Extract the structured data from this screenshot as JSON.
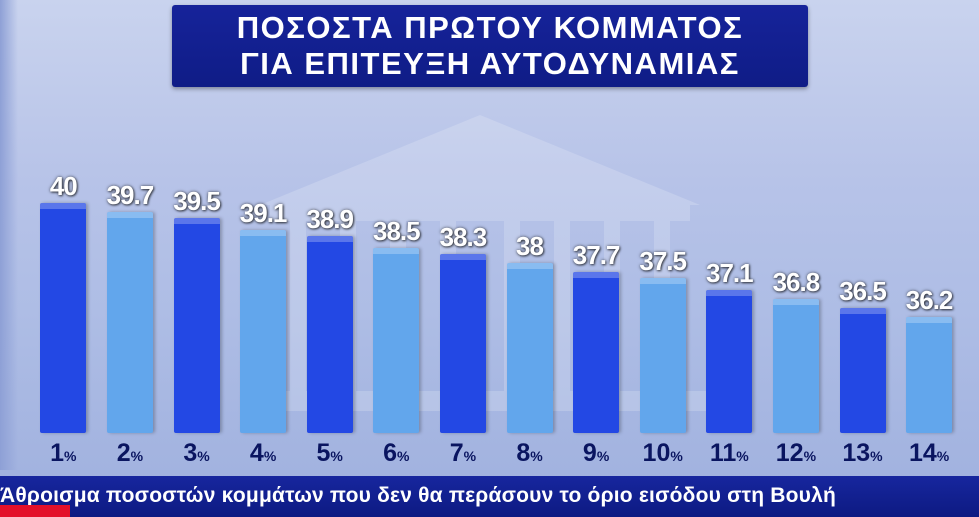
{
  "title": {
    "line1": "ΠΟΣΟΣΤΑ ΠΡΩΤΟΥ ΚΟΜΜΑΤΟΣ",
    "line2": "ΓΙΑ ΕΠΙΤΕΥΞΗ ΑΥΤΟΔΥΝΑΜΙΑΣ"
  },
  "ticker": {
    "text": "Άθροισμα ποσοστών κομμάτων που δεν θα περάσουν το όριο εισόδου στη Βουλή"
  },
  "colors": {
    "dark_bar": "#2348e4",
    "light_bar": "#62a6ec",
    "title_bg": "#13209a",
    "ticker_bg": "#13209a",
    "ticker_accent": "#e3102a"
  },
  "chart_data": {
    "type": "bar",
    "title": "ΠΟΣΟΣΤΑ ΠΡΩΤΟΥ ΚΟΜΜΑΤΟΣ ΓΙΑ ΕΠΙΤΕΥΞΗ ΑΥΤΟΔΥΝΑΜΙΑΣ",
    "xlabel": "",
    "ylabel": "",
    "categories": [
      "1",
      "2",
      "3",
      "4",
      "5",
      "6",
      "7",
      "8",
      "9",
      "10",
      "11",
      "12",
      "13",
      "14"
    ],
    "category_suffix": "%",
    "values": [
      40,
      39.7,
      39.5,
      39.1,
      38.9,
      38.5,
      38.3,
      38,
      37.7,
      37.5,
      37.1,
      36.8,
      36.5,
      36.2
    ],
    "value_labels": [
      "40",
      "39.7",
      "39.5",
      "39.1",
      "38.9",
      "38.5",
      "38.3",
      "38",
      "37.7",
      "37.5",
      "37.1",
      "36.8",
      "36.5",
      "36.2"
    ],
    "ylim": [
      0,
      40
    ],
    "grid": false,
    "legend": "none"
  }
}
